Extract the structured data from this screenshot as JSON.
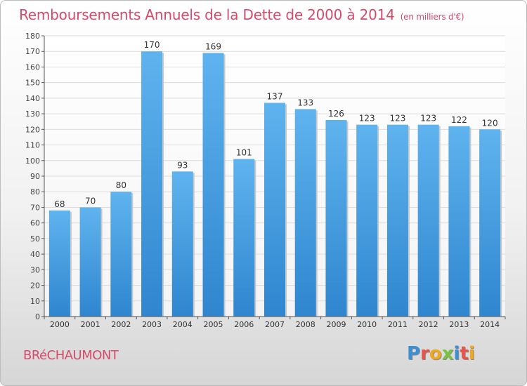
{
  "title": "Remboursements Annuels de la Dette de 2000 à 2014",
  "subtitle": "(en milliers d'€)",
  "commune": "BRéCHAUMONT",
  "logo": {
    "letters": [
      "P",
      "r",
      "o",
      "x",
      "i",
      "t",
      "i"
    ],
    "colors": [
      "#3d8fd4",
      "#e8534a",
      "#f0a81c",
      "#7cc242",
      "#3d8fd4",
      "#e8534a",
      "#f0a81c"
    ]
  },
  "chart_data": {
    "type": "bar",
    "title": "Remboursements Annuels de la Dette de 2000 à 2014",
    "xlabel": "",
    "ylabel": "",
    "categories": [
      "2000",
      "2001",
      "2002",
      "2003",
      "2004",
      "2005",
      "2006",
      "2007",
      "2008",
      "2009",
      "2010",
      "2011",
      "2012",
      "2013",
      "2014"
    ],
    "values": [
      68,
      70,
      80,
      170,
      93,
      169,
      101,
      137,
      133,
      126,
      123,
      123,
      123,
      122,
      120
    ],
    "ylim": [
      0,
      180
    ],
    "yticks": [
      0,
      10,
      20,
      30,
      40,
      50,
      60,
      70,
      80,
      90,
      100,
      110,
      120,
      130,
      140,
      150,
      160,
      170,
      180
    ],
    "grid": true,
    "bar_color": "#4a9fe0"
  }
}
